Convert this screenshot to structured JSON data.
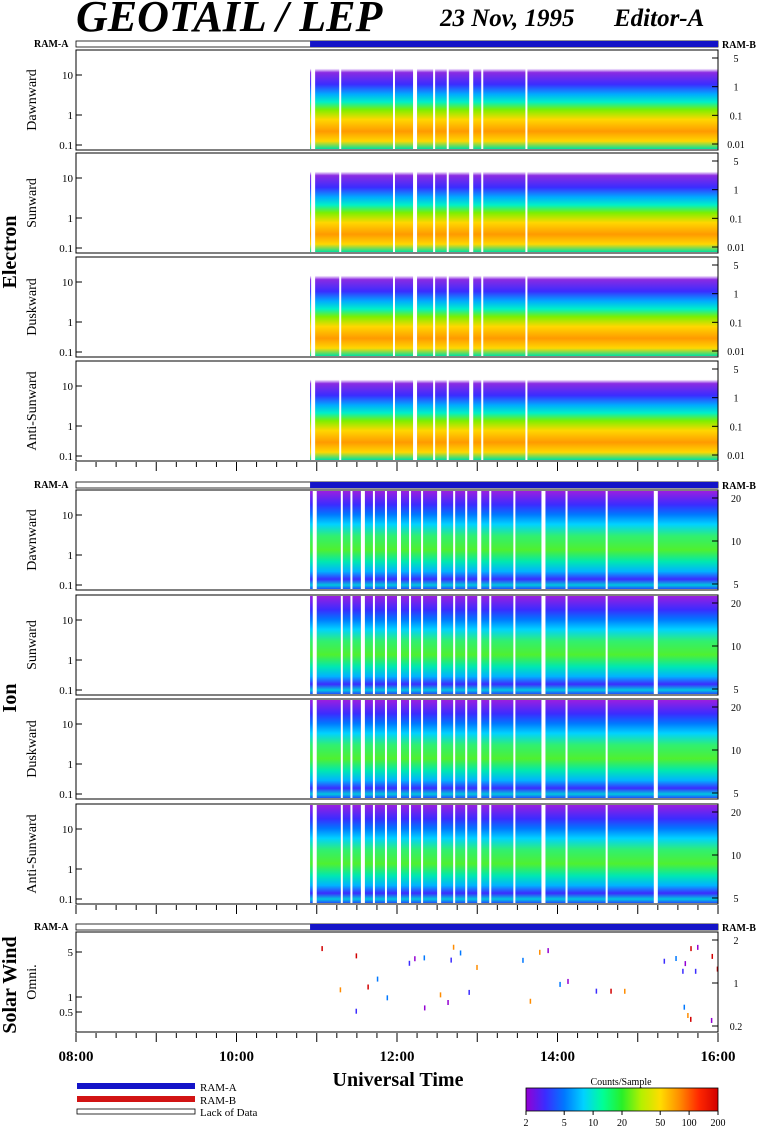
{
  "header": {
    "title": "GEOTAIL / LEP",
    "date": "23 Nov, 1995",
    "editor": "Editor-A"
  },
  "colors": {
    "ram_a": "#1414c8",
    "ram_b": "#d21414",
    "colorbar_stops": [
      "#9400d3",
      "#3b2cff",
      "#0078ff",
      "#00d2ff",
      "#00ff96",
      "#28f028",
      "#b4f000",
      "#ffdc00",
      "#ff8c00",
      "#ff2800",
      "#d20000"
    ]
  },
  "chart_data": {
    "type": "heatmap",
    "x_axis": {
      "label": "Universal Time",
      "range": [
        "08:00",
        "16:00"
      ],
      "tick_labels": [
        "08:00",
        "10:00",
        "12:00",
        "14:00",
        "16:00"
      ],
      "data_start": "10:55"
    },
    "groups": [
      {
        "name": "Electron",
        "ram_label_left": "RAM-A",
        "ram_label_right": "RAM-B",
        "panels": [
          {
            "label": "Dawnward",
            "left_ticks": [
              "10",
              "1",
              "0.1"
            ],
            "right_ticks": [
              "5",
              "1",
              "0.1",
              "0.01"
            ]
          },
          {
            "label": "Sunward",
            "left_ticks": [
              "10",
              "1",
              "0.1"
            ],
            "right_ticks": [
              "5",
              "1",
              "0.1",
              "0.01"
            ]
          },
          {
            "label": "Duskward",
            "left_ticks": [
              "10",
              "1",
              "0.1"
            ],
            "right_ticks": [
              "5",
              "1",
              "0.1",
              "0.01"
            ]
          },
          {
            "label": "Anti-Sunward",
            "left_ticks": [
              "10",
              "1",
              "0.1"
            ],
            "right_ticks": [
              "5",
              "1",
              "0.1",
              "0.01"
            ]
          }
        ]
      },
      {
        "name": "Ion",
        "ram_label_left": "RAM-A",
        "ram_label_right": "RAM-B",
        "panels": [
          {
            "label": "Dawnward",
            "left_ticks": [
              "10",
              "1",
              "0.1"
            ],
            "right_ticks": [
              "20",
              "10",
              "5"
            ]
          },
          {
            "label": "Sunward",
            "left_ticks": [
              "10",
              "1",
              "0.1"
            ],
            "right_ticks": [
              "20",
              "10",
              "5"
            ]
          },
          {
            "label": "Duskward",
            "left_ticks": [
              "10",
              "1",
              "0.1"
            ],
            "right_ticks": [
              "20",
              "10",
              "5"
            ]
          },
          {
            "label": "Anti-Sunward",
            "left_ticks": [
              "10",
              "1",
              "0.1"
            ],
            "right_ticks": [
              "20",
              "10",
              "5"
            ]
          }
        ]
      },
      {
        "name": "Solar Wind",
        "ram_label_left": "RAM-A",
        "ram_label_right": "RAM-B",
        "panels": [
          {
            "label": "Omni.",
            "left_ticks": [
              "5",
              "1",
              "0.5"
            ],
            "right_ticks": [
              "2",
              "1",
              "0.2"
            ]
          }
        ]
      }
    ],
    "legend": {
      "items": [
        {
          "label": "RAM-A",
          "color": "#1414c8"
        },
        {
          "label": "RAM-B",
          "color": "#d21414"
        },
        {
          "label": "Lack of Data",
          "color": "#ffffff"
        }
      ]
    },
    "colorbar": {
      "title": "Counts/Sample",
      "tick_labels": [
        "2",
        "5",
        "10",
        "20",
        "50",
        "100",
        "200"
      ],
      "scale": "log",
      "range": [
        2,
        200
      ]
    }
  }
}
